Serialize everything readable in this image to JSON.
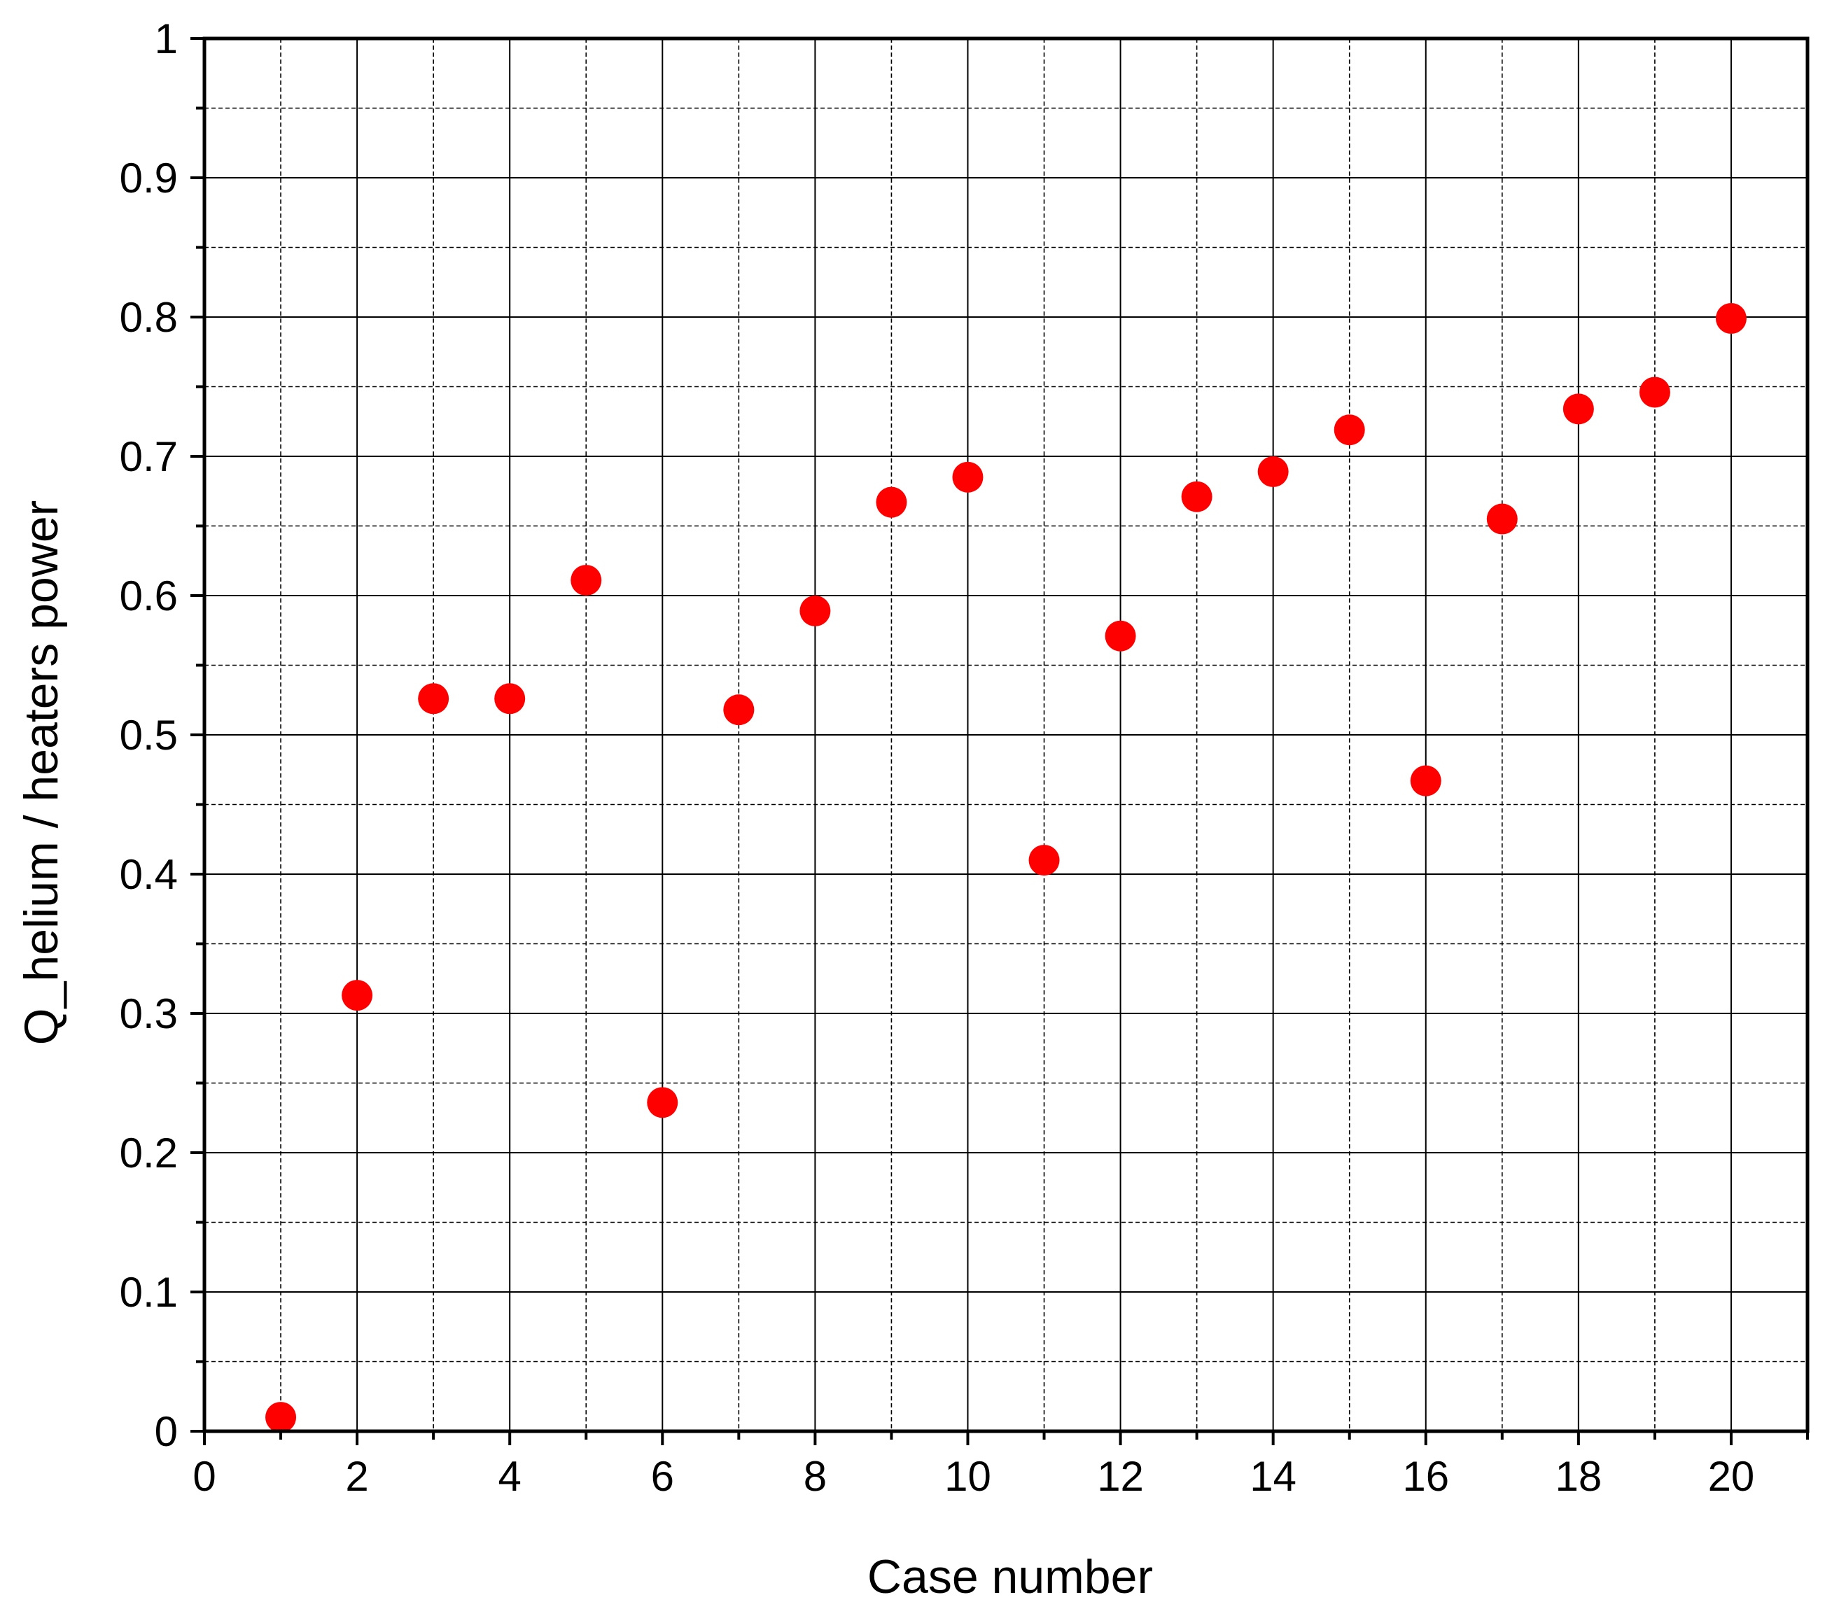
{
  "chart_data": {
    "type": "scatter",
    "title": "",
    "xlabel": "Case number",
    "ylabel": "Q_helium / heaters power",
    "xlim": [
      0,
      21
    ],
    "ylim": [
      0,
      1
    ],
    "x_ticks": [
      0,
      2,
      4,
      6,
      8,
      10,
      12,
      14,
      16,
      18,
      20
    ],
    "y_ticks": [
      0,
      0.1,
      0.2,
      0.3,
      0.4,
      0.5,
      0.6,
      0.7,
      0.8,
      0.9,
      1
    ],
    "x_tick_labels": [
      "0",
      "2",
      "4",
      "6",
      "8",
      "10",
      "12",
      "14",
      "16",
      "18",
      "20"
    ],
    "y_tick_labels": [
      "0",
      "0.1",
      "0.2",
      "0.3",
      "0.4",
      "0.5",
      "0.6",
      "0.7",
      "0.8",
      "0.9",
      "1"
    ],
    "grid": true,
    "grid_major": "solid",
    "grid_minor": "dashed",
    "legend": "none",
    "marker_color": "#ff0000",
    "series": [
      {
        "x": [
          1,
          2,
          3,
          4,
          5,
          6,
          7,
          8,
          9,
          10,
          11,
          12,
          13,
          14,
          15,
          16,
          17,
          18,
          19,
          20
        ],
        "y": [
          0.01,
          0.313,
          0.526,
          0.526,
          0.611,
          0.236,
          0.518,
          0.589,
          0.667,
          0.685,
          0.41,
          0.571,
          0.671,
          0.689,
          0.719,
          0.467,
          0.655,
          0.734,
          0.746,
          0.799
        ]
      }
    ]
  }
}
